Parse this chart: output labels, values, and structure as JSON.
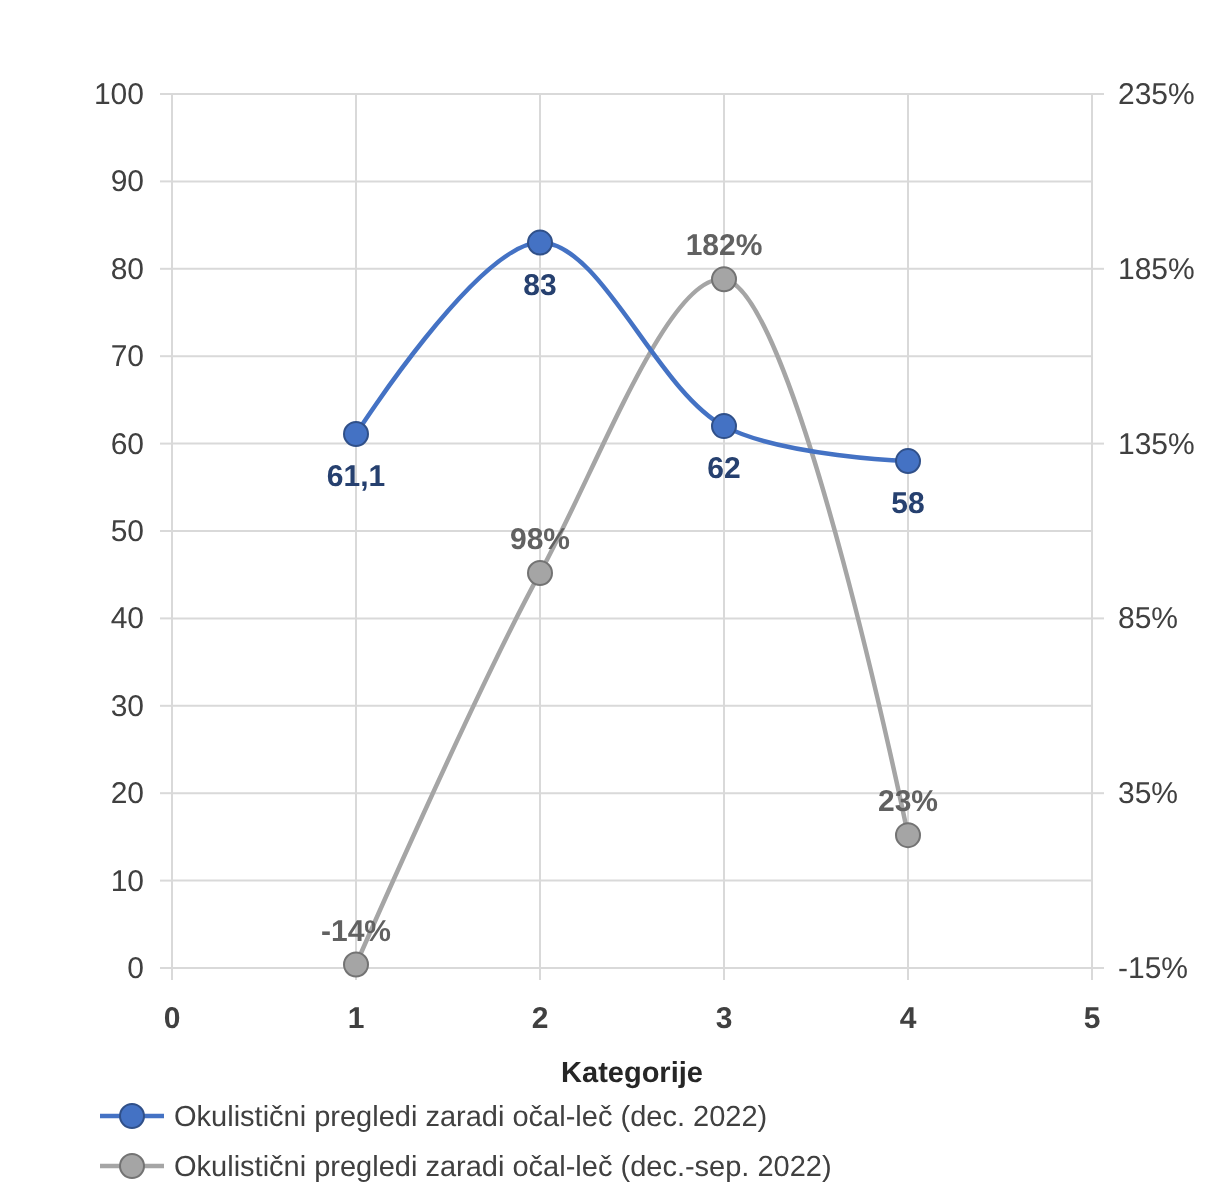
{
  "chart_data": {
    "type": "line",
    "xlabel": "Kategorije",
    "x": [
      1,
      2,
      3,
      4
    ],
    "xlim": [
      0,
      5
    ],
    "xticks": [
      0,
      1,
      2,
      3,
      4,
      5
    ],
    "ylim": [
      0,
      100
    ],
    "yticks": [
      0,
      10,
      20,
      30,
      40,
      50,
      60,
      70,
      80,
      90,
      100
    ],
    "y2lim": [
      -15,
      235
    ],
    "y2ticks": [
      {
        "value": -15,
        "label": "-15%"
      },
      {
        "value": 35,
        "label": "35%"
      },
      {
        "value": 85,
        "label": "85%"
      },
      {
        "value": 135,
        "label": "135%"
      },
      {
        "value": 185,
        "label": "185%"
      },
      {
        "value": 235,
        "label": "235%"
      }
    ],
    "series": [
      {
        "name": "Okulistični pregledi zaradi očal-leč (dec. 2022)",
        "color": "#4472c4",
        "values": [
          61.1,
          83,
          62,
          58
        ],
        "value_labels": [
          "61,1",
          "83",
          "62",
          "58"
        ]
      },
      {
        "name": "Okulistični pregledi zaradi očal-leč (dec.-sep. 2022)",
        "color": "#a5a5a5",
        "axis": "y2",
        "values": [
          -14,
          98,
          182,
          23
        ],
        "value_labels": [
          "-14%",
          "98%",
          "182%",
          "23%"
        ]
      }
    ],
    "grid": true,
    "legend": "bottom",
    "marker": "circle",
    "line_style": "solid"
  }
}
